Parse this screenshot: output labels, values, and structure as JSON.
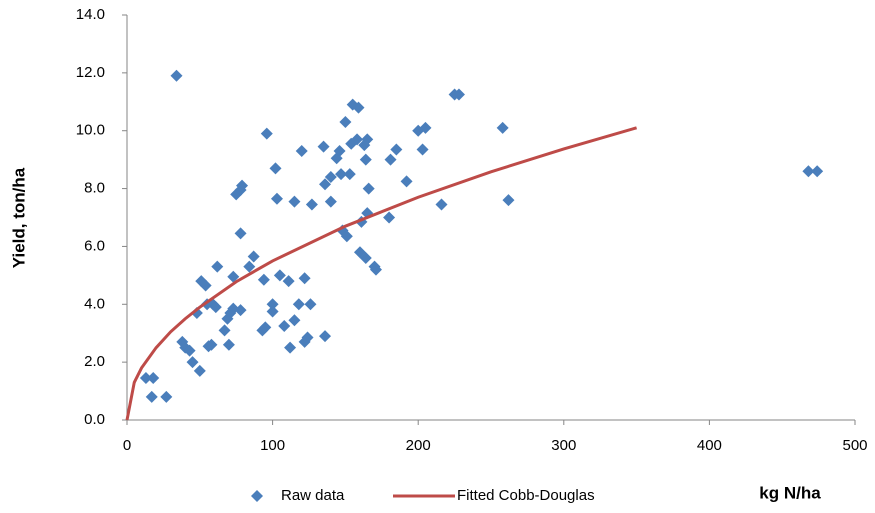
{
  "chart_data": {
    "type": "scatter",
    "x_label": "kg N/ha",
    "y_label": "Yield, ton/ha",
    "xlim": [
      0,
      500
    ],
    "ylim": [
      0,
      14
    ],
    "xticks": [
      0,
      100,
      200,
      300,
      400,
      500
    ],
    "yticks": [
      {
        "value": 0,
        "label": "0.0"
      },
      {
        "value": 2,
        "label": "2.0"
      },
      {
        "value": 4,
        "label": "4.0"
      },
      {
        "value": 6,
        "label": "6.0"
      },
      {
        "value": 8,
        "label": "8.0"
      },
      {
        "value": 10,
        "label": "10.0"
      },
      {
        "value": 12,
        "label": "12.0"
      },
      {
        "value": 14,
        "label": "14.0"
      }
    ],
    "series": [
      {
        "name": "Raw data",
        "type": "scatter",
        "color": "#4a7ebb",
        "x": [
          34,
          13,
          18,
          17,
          27,
          38,
          40,
          43,
          45,
          50,
          48,
          51,
          54,
          55,
          56,
          58,
          59,
          61,
          62,
          67,
          69,
          70,
          71,
          73,
          73,
          75,
          78,
          78,
          79,
          78,
          84,
          87,
          93,
          95,
          94,
          96,
          100,
          100,
          102,
          103,
          105,
          108,
          111,
          112,
          115,
          115,
          118,
          120,
          122,
          122,
          124,
          126,
          127,
          135,
          136,
          136,
          140,
          140,
          144,
          146,
          147,
          148,
          150,
          151,
          153,
          154,
          155,
          158,
          159,
          160,
          161,
          163,
          164,
          164,
          165,
          165,
          166,
          170,
          171,
          180,
          181,
          185,
          192,
          200,
          203,
          205,
          216,
          225,
          228,
          258,
          262,
          468,
          474
        ],
        "values": [
          11.9,
          1.45,
          1.45,
          0.8,
          0.8,
          2.7,
          2.5,
          2.4,
          2.0,
          1.7,
          3.7,
          4.8,
          4.65,
          4.0,
          2.55,
          2.6,
          4.0,
          3.9,
          5.3,
          3.1,
          3.5,
          2.6,
          3.7,
          3.85,
          4.95,
          7.8,
          3.8,
          7.95,
          8.1,
          6.45,
          5.3,
          5.65,
          3.1,
          3.2,
          4.85,
          9.9,
          4.0,
          3.75,
          8.7,
          7.65,
          5.0,
          3.25,
          4.8,
          2.5,
          7.55,
          3.45,
          4.0,
          9.3,
          4.9,
          2.7,
          2.85,
          4.0,
          7.45,
          9.45,
          2.9,
          8.15,
          7.55,
          8.4,
          9.05,
          9.3,
          8.5,
          6.55,
          10.3,
          6.35,
          8.5,
          9.55,
          10.9,
          9.7,
          10.8,
          5.8,
          6.85,
          9.5,
          5.6,
          9.0,
          7.15,
          9.7,
          8.0,
          5.3,
          5.2,
          7.0,
          9.0,
          9.35,
          8.25,
          10.0,
          9.35,
          10.1,
          7.45,
          11.25,
          11.25,
          10.1,
          7.6,
          8.6,
          8.6
        ]
      },
      {
        "name": "Fitted Cobb-Douglas",
        "type": "line",
        "color": "#be4b48",
        "x": [
          0,
          5,
          10,
          20,
          30,
          40,
          50,
          75,
          100,
          150,
          200,
          250,
          300,
          350
        ],
        "values": [
          0,
          1.3,
          1.8,
          2.5,
          3.05,
          3.5,
          3.9,
          4.78,
          5.5,
          6.7,
          7.7,
          8.58,
          9.37,
          10.1
        ]
      }
    ]
  }
}
